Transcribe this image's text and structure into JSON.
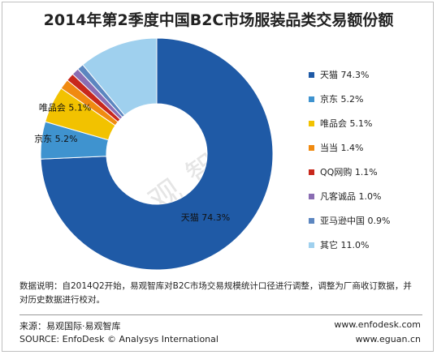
{
  "title": "2014年第2季度中国B2C市场服装品类交易额份额",
  "watermark": "易观智库",
  "chart_data": {
    "type": "pie",
    "title": "2014年第2季度中国B2C市场服装品类交易额份额",
    "unit": "%",
    "legend_position": "right",
    "slices": [
      {
        "name": "天猫",
        "value": 74.3,
        "value_label": "74.3%",
        "color": "#1f5aa6",
        "label_on_chart": true
      },
      {
        "name": "京东",
        "value": 5.2,
        "value_label": "5.2%",
        "color": "#3f93cf",
        "label_on_chart": true
      },
      {
        "name": "唯品会",
        "value": 5.1,
        "value_label": "5.1%",
        "color": "#f2c200",
        "label_on_chart": true
      },
      {
        "name": "当当",
        "value": 1.4,
        "value_label": "1.4%",
        "color": "#f08a10",
        "label_on_chart": false
      },
      {
        "name": "QQ网购",
        "value": 1.1,
        "value_label": "1.1%",
        "color": "#c8281c",
        "label_on_chart": false
      },
      {
        "name": "凡客诚品",
        "value": 1.0,
        "value_label": "1.0%",
        "color": "#8a6db3",
        "label_on_chart": false
      },
      {
        "name": "亚马逊中国",
        "value": 0.9,
        "value_label": "0.9%",
        "color": "#5c86c0",
        "label_on_chart": false
      },
      {
        "name": "其它",
        "value": 11.0,
        "value_label": "11.0%",
        "color": "#9fd0ee",
        "label_on_chart": false
      }
    ]
  },
  "note": "数据说明：自2014Q2开始，易观智库对B2C市场交易规模统计口径进行调整，调整为厂商收订数据，并对历史数据进行校对。",
  "footer": {
    "source_cn": "来源：易观国际·易观智库",
    "source_en": "SOURCE: EnfoDesk © Analysys International",
    "url1": "www.enfodesk.com",
    "url2": "www.eguan.cn"
  }
}
